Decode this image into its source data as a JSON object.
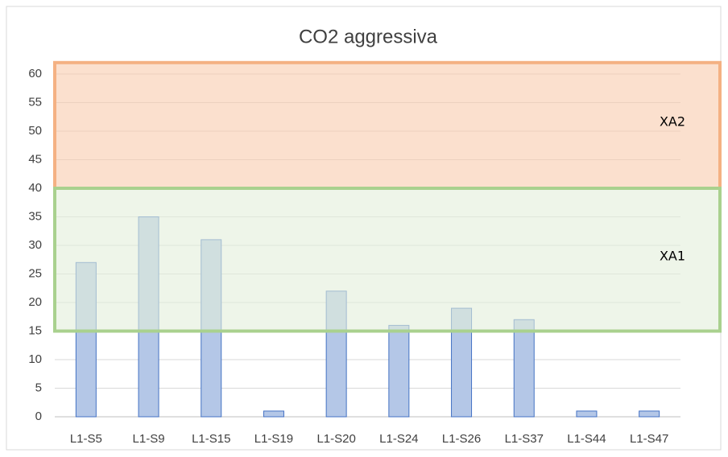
{
  "chart_data": {
    "type": "bar",
    "title": "CO2 aggressiva",
    "categories": [
      "L1-S5",
      "L1-S9",
      "L1-S15",
      "L1-S19",
      "L1-S20",
      "L1-S24",
      "L1-S26",
      "L1-S37",
      "L1-S44",
      "L1-S47"
    ],
    "values": [
      27,
      35,
      31,
      1,
      22,
      16,
      19,
      17,
      1,
      1
    ],
    "color": "#b4c7e7",
    "ylim": [
      0,
      60
    ],
    "yticks": [
      0,
      5,
      10,
      15,
      20,
      25,
      30,
      35,
      40,
      45,
      50,
      55,
      60
    ],
    "grid": true,
    "bands": [
      {
        "label": "XA2",
        "from": 40,
        "to": 62,
        "color": "#f8cbad",
        "border": "#f4b183"
      },
      {
        "label": "XA1",
        "from": 15,
        "to": 40,
        "color": "#e2efda",
        "border": "#a9d18e"
      }
    ]
  }
}
